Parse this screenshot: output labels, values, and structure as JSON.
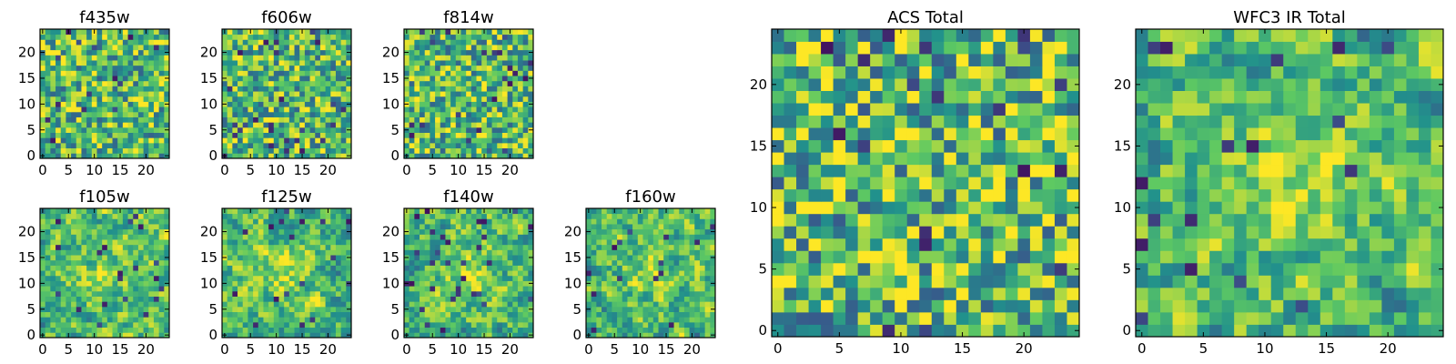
{
  "figure": {
    "description_units": "pixel-intensity grid 25x25 per panel",
    "colors": {
      "cmap": [
        "#440154",
        "#3b528b",
        "#21918c",
        "#5ec962",
        "#fde725"
      ]
    }
  },
  "chart_data": [
    {
      "type": "heatmap",
      "title": "f435w",
      "grid": 25,
      "xticks": [
        "0",
        "5",
        "10",
        "15",
        "20"
      ],
      "yticks": [
        "0",
        "5",
        "10",
        "15",
        "20"
      ],
      "xlim": [
        -0.5,
        24.5
      ],
      "ylim": [
        -0.5,
        24.5
      ],
      "seed": 11,
      "contrast": 1.0
    },
    {
      "type": "heatmap",
      "title": "f606w",
      "grid": 25,
      "xticks": [
        "0",
        "5",
        "10",
        "15",
        "20"
      ],
      "yticks": [
        "0",
        "5",
        "10",
        "15",
        "20"
      ],
      "xlim": [
        -0.5,
        24.5
      ],
      "ylim": [
        -0.5,
        24.5
      ],
      "seed": 23,
      "contrast": 1.0
    },
    {
      "type": "heatmap",
      "title": "f814w",
      "grid": 25,
      "xticks": [
        "0",
        "5",
        "10",
        "15",
        "20"
      ],
      "yticks": [
        "0",
        "5",
        "10",
        "15",
        "20"
      ],
      "xlim": [
        -0.5,
        24.5
      ],
      "ylim": [
        -0.5,
        24.5
      ],
      "seed": 37,
      "contrast": 1.0
    },
    {
      "type": "heatmap",
      "title": "f105w",
      "grid": 25,
      "xticks": [
        "0",
        "5",
        "10",
        "15",
        "20"
      ],
      "yticks": [
        "0",
        "5",
        "10",
        "15",
        "20"
      ],
      "xlim": [
        -0.5,
        24.5
      ],
      "ylim": [
        -0.5,
        24.5
      ],
      "seed": 41,
      "contrast": 0.8
    },
    {
      "type": "heatmap",
      "title": "f125w",
      "grid": 25,
      "xticks": [
        "0",
        "5",
        "10",
        "15",
        "20"
      ],
      "yticks": [
        "0",
        "5",
        "10",
        "15",
        "20"
      ],
      "xlim": [
        -0.5,
        24.5
      ],
      "ylim": [
        -0.5,
        24.5
      ],
      "seed": 53,
      "contrast": 0.8
    },
    {
      "type": "heatmap",
      "title": "f140w",
      "grid": 25,
      "xticks": [
        "0",
        "5",
        "10",
        "15",
        "20"
      ],
      "yticks": [
        "0",
        "5",
        "10",
        "15",
        "20"
      ],
      "xlim": [
        -0.5,
        24.5
      ],
      "ylim": [
        -0.5,
        24.5
      ],
      "seed": 67,
      "contrast": 0.8
    },
    {
      "type": "heatmap",
      "title": "f160w",
      "grid": 25,
      "xticks": [
        "0",
        "5",
        "10",
        "15",
        "20"
      ],
      "yticks": [
        "0",
        "5",
        "10",
        "15",
        "20"
      ],
      "xlim": [
        -0.5,
        24.5
      ],
      "ylim": [
        -0.5,
        24.5
      ],
      "seed": 79,
      "contrast": 0.8
    },
    {
      "type": "heatmap",
      "title": "ACS Total",
      "grid": 25,
      "xticks": [
        "0",
        "5",
        "10",
        "15",
        "20"
      ],
      "yticks": [
        "0",
        "5",
        "10",
        "15",
        "20"
      ],
      "xlim": [
        -0.5,
        24.5
      ],
      "ylim": [
        -0.5,
        24.5
      ],
      "seed": 97,
      "contrast": 0.9
    },
    {
      "type": "heatmap",
      "title": "WFC3 IR Total",
      "grid": 25,
      "xticks": [
        "0",
        "5",
        "10",
        "15",
        "20"
      ],
      "yticks": [
        "0",
        "5",
        "10",
        "15",
        "20"
      ],
      "xlim": [
        -0.5,
        24.5
      ],
      "ylim": [
        -0.5,
        24.5
      ],
      "seed": 113,
      "contrast": 0.75
    }
  ]
}
